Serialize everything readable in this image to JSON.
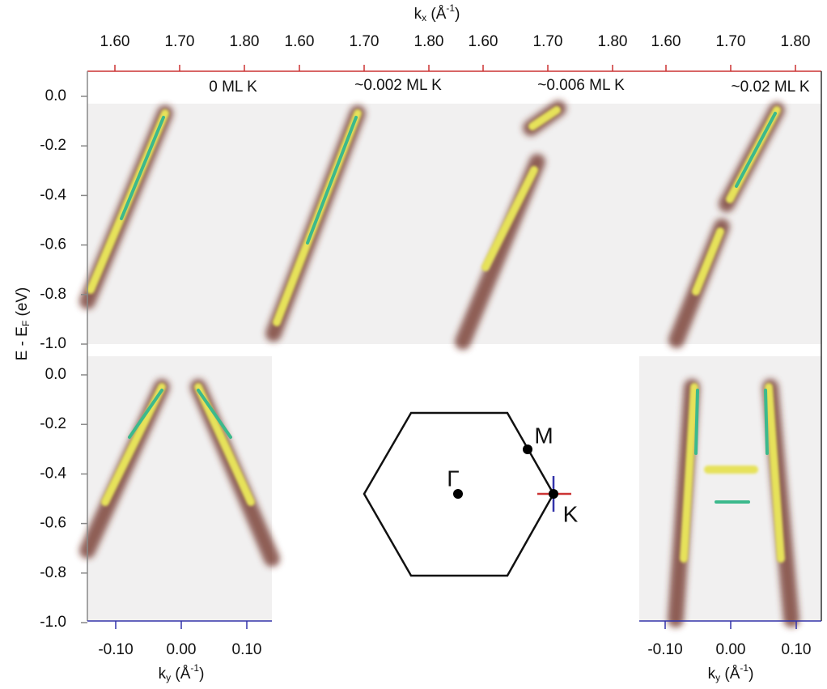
{
  "top_axis": {
    "label": {
      "main": "k",
      "sub": "x",
      "unit": " (Å",
      "sup": "-1",
      "close": ")"
    },
    "ticks": [
      {
        "value": 1.6,
        "label": "1.60"
      },
      {
        "value": 1.7,
        "label": "1.70"
      },
      {
        "value": 1.8,
        "label": "1.80"
      }
    ]
  },
  "left_axis": {
    "label": {
      "main": "E - E",
      "sub": "F",
      "unit": " (eV)"
    },
    "ticks": [
      {
        "value": 0,
        "label": "0.0"
      },
      {
        "value": -0.2,
        "label": "-0.2"
      },
      {
        "value": -0.4,
        "label": "-0.4"
      },
      {
        "value": -0.6,
        "label": "-0.6"
      },
      {
        "value": -0.8,
        "label": "-0.8"
      },
      {
        "value": -1,
        "label": "-1.0"
      }
    ]
  },
  "bottom_axis": {
    "label": {
      "main": "k",
      "sub": "y",
      "unit": " (Å",
      "sup": "-1",
      "close": ")"
    },
    "ticks": [
      {
        "value": -0.1,
        "label": "-0.10"
      },
      {
        "value": 0,
        "label": "0.00"
      },
      {
        "value": 0.1,
        "label": "0.10"
      }
    ]
  },
  "panels": [
    "0 ML K",
    "~0.002 ML K",
    "~0.006 ML K",
    "~0.02 ML K"
  ],
  "brillouin_zone": {
    "gamma": "Γ",
    "m": "M",
    "k": "K"
  }
}
